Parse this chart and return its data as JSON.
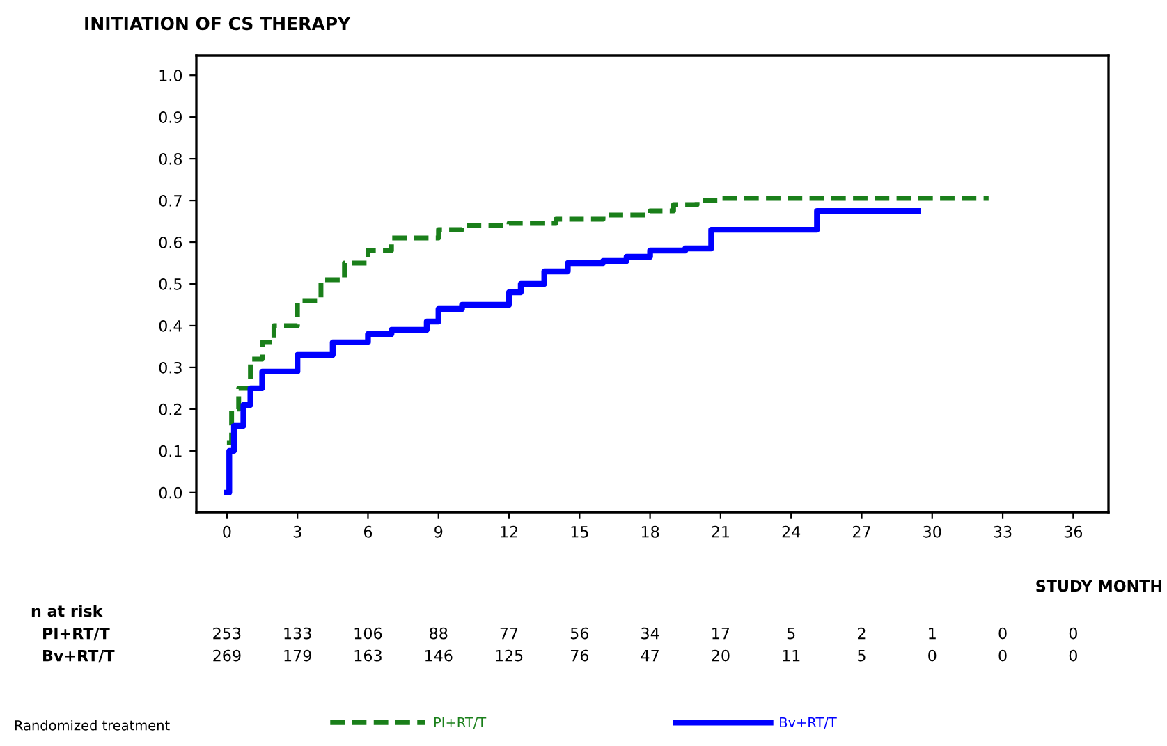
{
  "chart_data": {
    "type": "step",
    "title": "INITIATION OF CS THERAPY",
    "xlabel": "STUDY MONTH",
    "legend_title": "Randomized treatment",
    "legend": "bottom",
    "grid": false,
    "marker": "none",
    "xlim": [
      -1.3,
      37.5
    ],
    "ylim": [
      -0.047,
      1.047
    ],
    "xticks": [
      0,
      3,
      6,
      9,
      12,
      15,
      18,
      21,
      24,
      27,
      30,
      33,
      36
    ],
    "yticks": [
      {
        "value": 0,
        "label": "0.0"
      },
      {
        "value": 0.1,
        "label": "0.1"
      },
      {
        "value": 0.2,
        "label": "0.2"
      },
      {
        "value": 0.3,
        "label": "0.3"
      },
      {
        "value": 0.4,
        "label": "0.4"
      },
      {
        "value": 0.5,
        "label": "0.5"
      },
      {
        "value": 0.6,
        "label": "0.6"
      },
      {
        "value": 0.7,
        "label": "0.7"
      },
      {
        "value": 0.8,
        "label": "0.8"
      },
      {
        "value": 0.9,
        "label": "0.9"
      },
      {
        "value": 1,
        "label": "1.0"
      }
    ],
    "series": [
      {
        "name": "PI+RT/T",
        "color": "#1a7f1a",
        "line_style": "dashed",
        "x": [
          0,
          0.2,
          0.5,
          1,
          1.5,
          2,
          3,
          4,
          5,
          6,
          7,
          8,
          9,
          10,
          12,
          14,
          16,
          18,
          19,
          20,
          21,
          24,
          32.4
        ],
        "values": [
          0.12,
          0.2,
          0.25,
          0.32,
          0.36,
          0.4,
          0.46,
          0.51,
          0.55,
          0.58,
          0.61,
          0.61,
          0.63,
          0.64,
          0.645,
          0.655,
          0.665,
          0.675,
          0.69,
          0.7,
          0.705,
          0.705,
          0.705
        ]
      },
      {
        "name": "Bv+RT/T",
        "color": "#0000ff",
        "line_style": "solid",
        "x": [
          0,
          0.1,
          0.3,
          0.7,
          1,
          1.5,
          3,
          4.5,
          6,
          7,
          8.5,
          9,
          10,
          12,
          12.5,
          13.5,
          14.5,
          16,
          17,
          18,
          19.5,
          20.6,
          25.1,
          29.4
        ],
        "values": [
          0,
          0.1,
          0.16,
          0.21,
          0.25,
          0.29,
          0.33,
          0.36,
          0.38,
          0.39,
          0.41,
          0.44,
          0.45,
          0.48,
          0.5,
          0.53,
          0.55,
          0.555,
          0.565,
          0.58,
          0.585,
          0.63,
          0.675,
          0.675
        ]
      }
    ],
    "annotations": [
      "n at risk",
      "PI+RT/T",
      "253",
      "133",
      "106",
      "88",
      "77",
      "56",
      "34",
      "17",
      "5",
      "2",
      "1",
      "0",
      "0",
      "Bv+RT/T",
      "269",
      "179",
      "163",
      "146",
      "125",
      "76",
      "47",
      "20",
      "11",
      "5",
      "0",
      "0",
      "0"
    ]
  }
}
